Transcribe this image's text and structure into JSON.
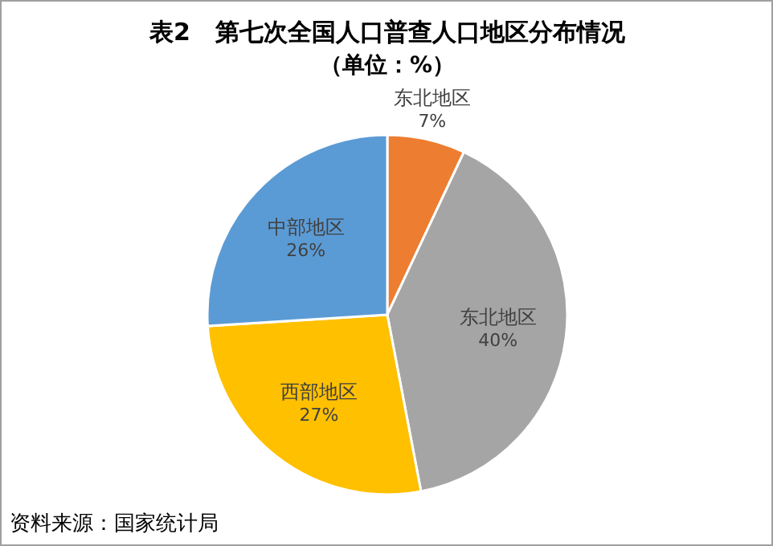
{
  "chart_data": {
    "type": "pie",
    "title": "表2   第七次全国人口普查人口地区分布情况",
    "subtitle": "（单位：%）",
    "categories": [
      "东北地区",
      "东北地区",
      "西部地区",
      "中部地区"
    ],
    "values": [
      7,
      40,
      27,
      26
    ],
    "colors": [
      "#ed7d31",
      "#a5a5a5",
      "#ffc000",
      "#5b9bd5"
    ],
    "value_labels": [
      "7%",
      "40%",
      "27%",
      "26%"
    ],
    "annotations": [
      "资料来源：国家统计局"
    ]
  }
}
